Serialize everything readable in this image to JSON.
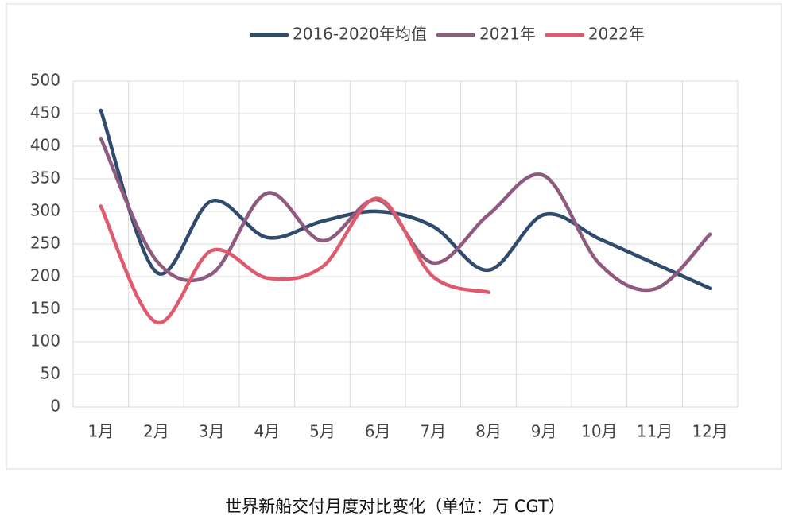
{
  "chart_data": {
    "type": "line",
    "caption": "世界新船交付月度对比变化（单位：万 CGT）",
    "categories": [
      "1月",
      "2月",
      "3月",
      "4月",
      "5月",
      "6月",
      "7月",
      "8月",
      "9月",
      "10月",
      "11月",
      "12月"
    ],
    "series": [
      {
        "name": "2016-2020年均值",
        "color": "#2f4b6e",
        "values": [
          455,
          207,
          316,
          260,
          285,
          300,
          277,
          210,
          295,
          258,
          220,
          182
        ]
      },
      {
        "name": "2021年",
        "color": "#8e5a7e",
        "values": [
          412,
          225,
          204,
          328,
          255,
          318,
          221,
          295,
          355,
          220,
          181,
          265
        ]
      },
      {
        "name": "2022年",
        "color": "#e05a6e",
        "values": [
          308,
          130,
          240,
          198,
          215,
          320,
          200,
          176,
          null,
          null,
          null,
          null
        ]
      }
    ],
    "ylim": [
      0,
      500
    ],
    "yticks": [
      0,
      50,
      100,
      150,
      200,
      250,
      300,
      350,
      400,
      450,
      500
    ],
    "grid": true,
    "smooth": true,
    "legend": "top"
  }
}
